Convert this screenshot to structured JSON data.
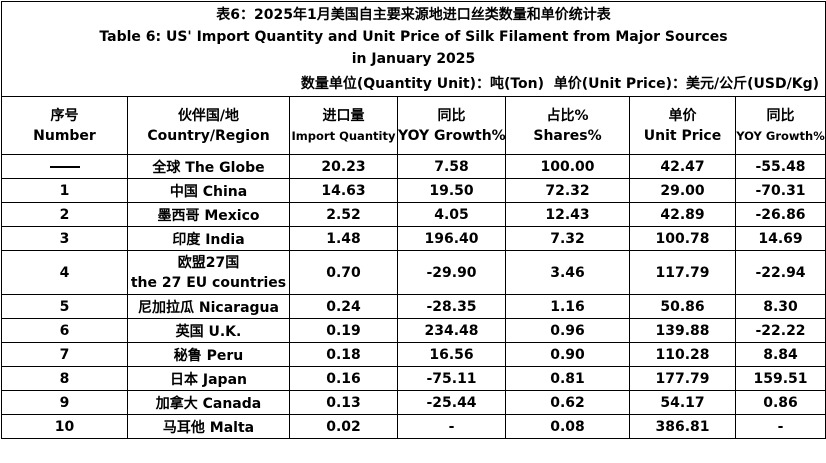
{
  "title": {
    "cn": "表6：2025年1月美国自主要来源地进口丝类数量和单价统计表",
    "en_line1": "Table 6: US' Import Quantity and Unit Price of Silk Filament from Major Sources",
    "en_line2": "in January 2025"
  },
  "units": "数量单位(Quantity Unit)：吨(Ton)  单价(Unit Price)：美元/公斤(USD/Kg)",
  "headers": {
    "seq_cn": "序号",
    "seq_en": "Number",
    "country_cn": "伙伴国/地",
    "country_en": "Country/Region",
    "qty_cn": "进口量",
    "qty_en": "Import Quantity",
    "yoy1_cn": "同比",
    "yoy1_en": "YOY Growth%",
    "share_cn": "占比%",
    "share_en": "Shares%",
    "price_cn": "单价",
    "price_en": "Unit Price",
    "yoy2_cn": "同比",
    "yoy2_en": "YOY Growth%"
  },
  "rows": [
    {
      "no": "",
      "country": "全球 The Globe",
      "qty": "20.23",
      "yoy": "7.58",
      "share": "100.00",
      "price": "42.47",
      "yoy2": "-55.48"
    },
    {
      "no": "1",
      "country": "中国 China",
      "qty": "14.63",
      "yoy": "19.50",
      "share": "72.32",
      "price": "29.00",
      "yoy2": "-70.31"
    },
    {
      "no": "2",
      "country": "墨西哥 Mexico",
      "qty": "2.52",
      "yoy": "4.05",
      "share": "12.43",
      "price": "42.89",
      "yoy2": "-26.86"
    },
    {
      "no": "3",
      "country": "印度 India",
      "qty": "1.48",
      "yoy": "196.40",
      "share": "7.32",
      "price": "100.78",
      "yoy2": "14.69"
    },
    {
      "no": "4",
      "country_cn": "欧盟27国",
      "country_en": "the 27 EU countries",
      "qty": "0.70",
      "yoy": "-29.90",
      "share": "3.46",
      "price": "117.79",
      "yoy2": "-22.94"
    },
    {
      "no": "5",
      "country": "尼加拉瓜 Nicaragua",
      "qty": "0.24",
      "yoy": "-28.35",
      "share": "1.16",
      "price": "50.86",
      "yoy2": "8.30"
    },
    {
      "no": "6",
      "country": "英国 U.K.",
      "qty": "0.19",
      "yoy": "234.48",
      "share": "0.96",
      "price": "139.88",
      "yoy2": "-22.22"
    },
    {
      "no": "7",
      "country": "秘鲁 Peru",
      "qty": "0.18",
      "yoy": "16.56",
      "share": "0.90",
      "price": "110.28",
      "yoy2": "8.84"
    },
    {
      "no": "8",
      "country": "日本 Japan",
      "qty": "0.16",
      "yoy": "-75.11",
      "share": "0.81",
      "price": "177.79",
      "yoy2": "159.51"
    },
    {
      "no": "9",
      "country": "加拿大 Canada",
      "qty": "0.13",
      "yoy": "-25.44",
      "share": "0.62",
      "price": "54.17",
      "yoy2": "0.86"
    },
    {
      "no": "10",
      "country": "马耳他 Malta",
      "qty": "0.02",
      "yoy": "-",
      "share": "0.08",
      "price": "386.81",
      "yoy2": "-"
    }
  ]
}
